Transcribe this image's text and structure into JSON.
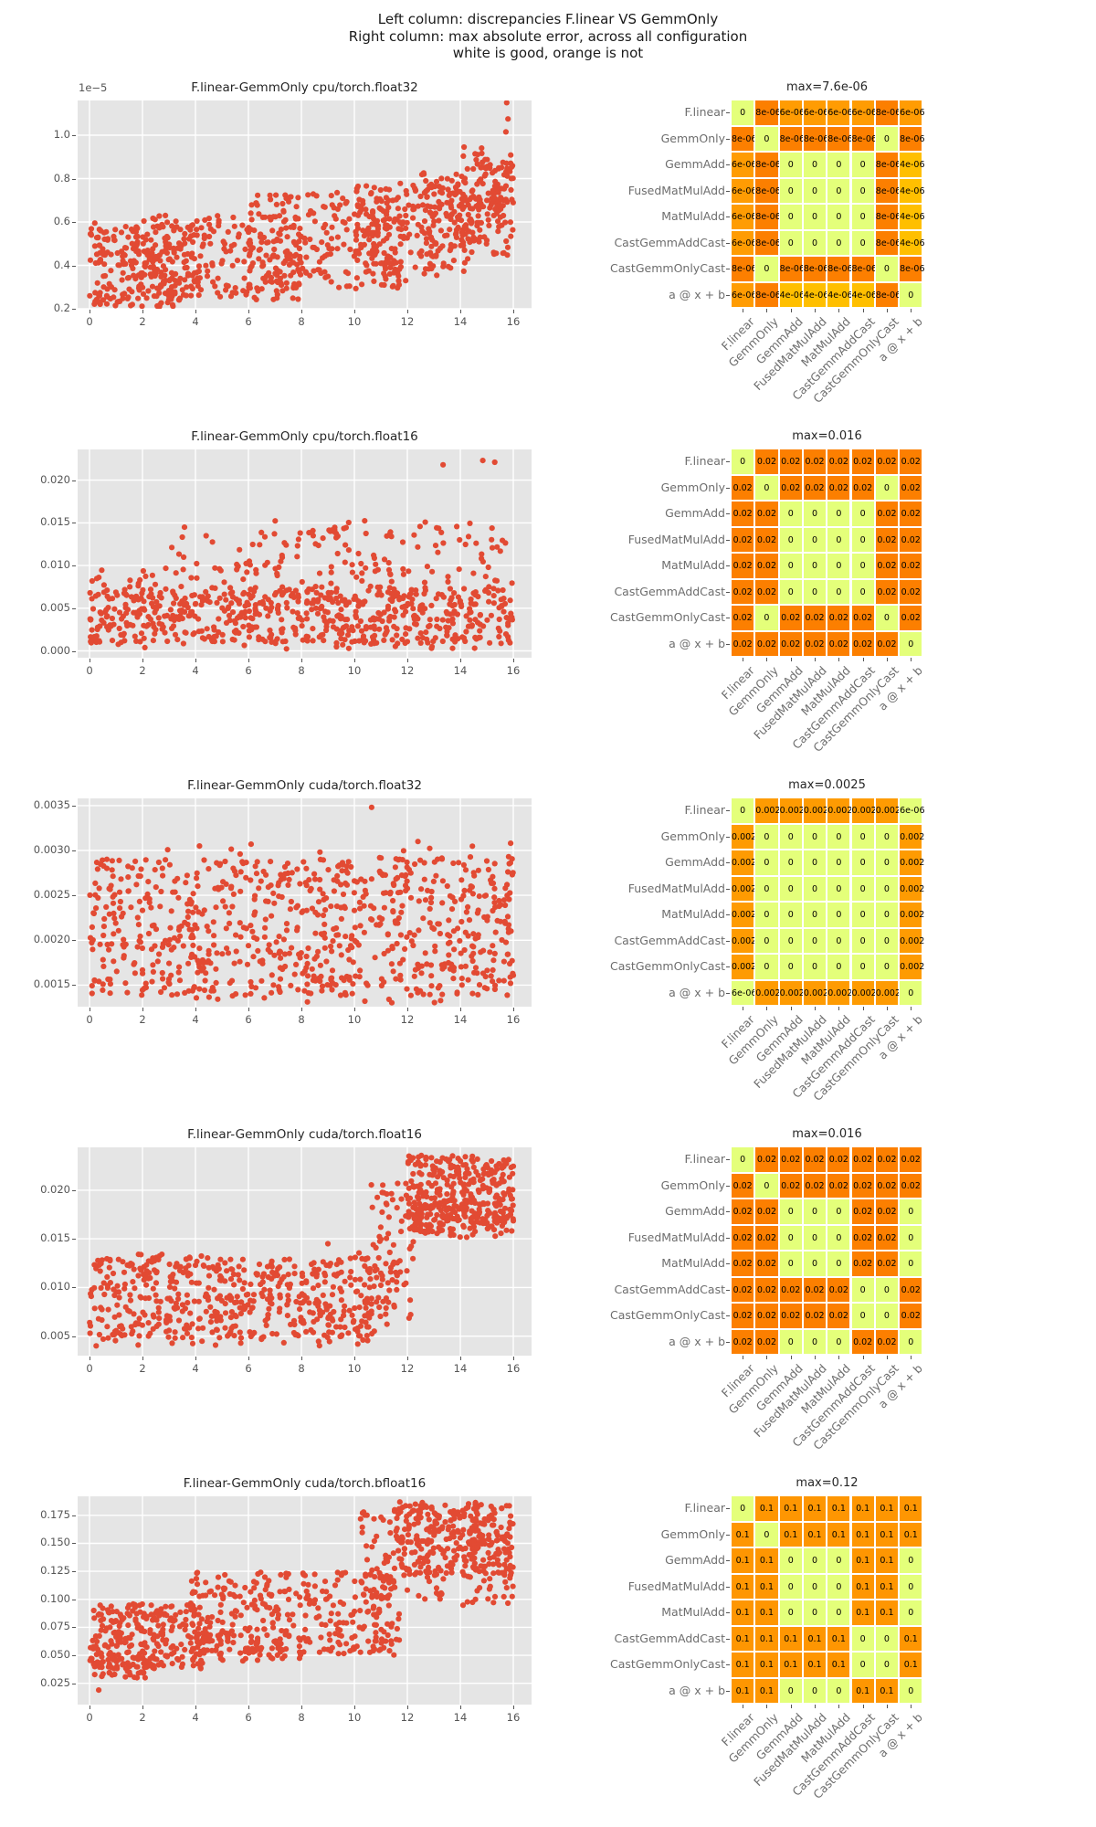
{
  "chart_data": {
    "type": [
      "scatter",
      "heatmap"
    ],
    "suptitle": [
      "Left column: discrepancies F.linear VS GemmOnly",
      "Right column: max absolute error, across all configuration",
      "white is good, orange is not"
    ],
    "operators": [
      "F.linear",
      "GemmOnly",
      "GemmAdd",
      "FusedMatMulAdd",
      "MatMulAdd",
      "CastGemmAddCast",
      "CastGemmOnlyCast",
      "a @ x + b"
    ],
    "style": {
      "dot_color": "#e24a33",
      "plot_bg": "#e5e5e5",
      "grid_color": "#ffffff",
      "tick_color": "#555555",
      "heatmap_label_color": "#6d6d6d",
      "colormap_wistia": [
        "#e4ff7a",
        "#ffe81a",
        "#ffc200",
        "#ffa203",
        "#fc7f00"
      ]
    },
    "scatters": [
      {
        "title": "F.linear-GemmOnly cpu/torch.float32",
        "offset_text": "1e−5",
        "xticks": [
          0,
          2,
          4,
          6,
          8,
          10,
          12,
          14,
          16
        ],
        "yticks": [
          [
            2e-06,
            "0.2"
          ],
          [
            4e-06,
            "0.4"
          ],
          [
            6e-06,
            "0.6"
          ],
          [
            8e-06,
            "0.8"
          ],
          [
            1e-05,
            "1.0"
          ]
        ],
        "ylim": [
          2e-06,
          1.16e-05
        ],
        "seed": 11,
        "bands": [
          [
            0,
            4.2,
            2.1e-06,
            5.9e-06,
            230
          ],
          [
            2,
            8,
            2.4e-06,
            6.3e-06,
            210
          ],
          [
            6,
            12,
            2.9e-06,
            7.3e-06,
            240
          ],
          [
            10,
            14.2,
            3.5e-06,
            7.8e-06,
            160
          ],
          [
            12.5,
            16,
            4.3e-06,
            8.8e-06,
            170
          ],
          [
            14,
            16,
            5.6e-06,
            9.5e-06,
            70
          ]
        ],
        "outliers": [
          [
            15.75,
            1.15e-05
          ],
          [
            15.8,
            1.075e-05
          ],
          [
            15.72,
            1.015e-05
          ],
          [
            13.85,
            8.2e-06
          ],
          [
            9.35,
            7.35e-06
          ],
          [
            0.2,
            5.95e-06
          ]
        ]
      },
      {
        "title": "F.linear-GemmOnly cpu/torch.float16",
        "xticks": [
          0,
          2,
          4,
          6,
          8,
          10,
          12,
          14,
          16
        ],
        "yticks": [
          [
            0.0,
            "0.000"
          ],
          [
            0.005,
            "0.005"
          ],
          [
            0.01,
            "0.010"
          ],
          [
            0.015,
            "0.015"
          ],
          [
            0.02,
            "0.020"
          ]
        ],
        "ylim": [
          -0.0008,
          0.0236
        ],
        "seed": 22,
        "bands": [
          [
            0,
            16,
            0.0008,
            0.0075,
            520
          ],
          [
            0,
            16,
            0.0002,
            0.0105,
            200
          ],
          [
            3,
            16,
            0.009,
            0.0145,
            90
          ],
          [
            6.5,
            16,
            0.0125,
            0.0153,
            14
          ]
        ],
        "outliers": [
          [
            13.35,
            0.0218
          ],
          [
            14.85,
            0.0223
          ],
          [
            15.3,
            0.0221
          ]
        ]
      },
      {
        "title": "F.linear-GemmOnly cuda/torch.float32",
        "xticks": [
          0,
          2,
          4,
          6,
          8,
          10,
          12,
          14,
          16
        ],
        "yticks": [
          [
            0.0015,
            "0.0015"
          ],
          [
            0.002,
            "0.0020"
          ],
          [
            0.0025,
            "0.0025"
          ],
          [
            0.003,
            "0.0030"
          ],
          [
            0.0035,
            "0.0035"
          ]
        ],
        "ylim": [
          0.00126,
          0.00358
        ],
        "seed": 33,
        "bands": [
          [
            0,
            16,
            0.00138,
            0.00292,
            640
          ],
          [
            0,
            16,
            0.0013,
            0.00305,
            170
          ]
        ],
        "outliers": [
          [
            10.65,
            0.00348
          ],
          [
            15.9,
            0.00308
          ],
          [
            12.4,
            0.0031
          ],
          [
            6.1,
            0.00307
          ]
        ]
      },
      {
        "title": "F.linear-GemmOnly cuda/torch.float16",
        "xticks": [
          0,
          2,
          4,
          6,
          8,
          10,
          12,
          14,
          16
        ],
        "yticks": [
          [
            0.005,
            "0.005"
          ],
          [
            0.01,
            "0.010"
          ],
          [
            0.015,
            "0.015"
          ],
          [
            0.02,
            "0.020"
          ]
        ],
        "ylim": [
          0.003,
          0.0244
        ],
        "seed": 44,
        "bands": [
          [
            0,
            10.8,
            0.0048,
            0.0131,
            430
          ],
          [
            0,
            10.8,
            0.004,
            0.0136,
            110
          ],
          [
            10.6,
            12.3,
            0.006,
            0.0208,
            85
          ],
          [
            12,
            16,
            0.0157,
            0.0236,
            330
          ],
          [
            12,
            16,
            0.015,
            0.019,
            60
          ]
        ],
        "outliers": [
          [
            0.25,
            0.004
          ],
          [
            9.0,
            0.0145
          ]
        ]
      },
      {
        "title": "F.linear-GemmOnly cuda/torch.bfloat16",
        "xticks": [
          0,
          2,
          4,
          6,
          8,
          10,
          12,
          14,
          16
        ],
        "yticks": [
          [
            0.025,
            "0.025"
          ],
          [
            0.05,
            "0.050"
          ],
          [
            0.075,
            "0.075"
          ],
          [
            0.1,
            "0.100"
          ],
          [
            0.125,
            "0.125"
          ],
          [
            0.15,
            "0.150"
          ],
          [
            0.175,
            "0.175"
          ]
        ],
        "ylim": [
          0.006,
          0.192
        ],
        "seed": 55,
        "bands": [
          [
            0,
            4.3,
            0.038,
            0.096,
            250
          ],
          [
            0,
            2.5,
            0.03,
            0.052,
            45
          ],
          [
            3.8,
            11.7,
            0.05,
            0.1245,
            330
          ],
          [
            4,
            8,
            0.044,
            0.068,
            45
          ],
          [
            10.2,
            12.1,
            0.098,
            0.182,
            55
          ],
          [
            11.6,
            16,
            0.123,
            0.187,
            300
          ],
          [
            12,
            16,
            0.094,
            0.124,
            45
          ]
        ],
        "outliers": [
          [
            0.35,
            0.019
          ],
          [
            2.1,
            0.03
          ],
          [
            10.35,
            0.178
          ]
        ]
      }
    ],
    "heatmaps": [
      {
        "title": "max=7.6e-06",
        "max": 7.6e-06,
        "cells": [
          [
            "0",
            "8e-06",
            "6e-06",
            "6e-06",
            "6e-06",
            "6e-06",
            "8e-06",
            "6e-06"
          ],
          [
            "8e-06",
            "0",
            "8e-06",
            "8e-06",
            "8e-06",
            "8e-06",
            "0",
            "8e-06"
          ],
          [
            "6e-06",
            "8e-06",
            "0",
            "0",
            "0",
            "0",
            "8e-06",
            "4e-06"
          ],
          [
            "6e-06",
            "8e-06",
            "0",
            "0",
            "0",
            "0",
            "8e-06",
            "4e-06"
          ],
          [
            "6e-06",
            "8e-06",
            "0",
            "0",
            "0",
            "0",
            "8e-06",
            "4e-06"
          ],
          [
            "6e-06",
            "8e-06",
            "0",
            "0",
            "0",
            "0",
            "8e-06",
            "4e-06"
          ],
          [
            "8e-06",
            "0",
            "8e-06",
            "8e-06",
            "8e-06",
            "8e-06",
            "0",
            "8e-06"
          ],
          [
            "6e-06",
            "8e-06",
            "4e-06",
            "4e-06",
            "4e-06",
            "4e-06",
            "8e-06",
            "0"
          ]
        ]
      },
      {
        "title": "max=0.016",
        "max": 0.016,
        "cells": [
          [
            "0",
            "0.02",
            "0.02",
            "0.02",
            "0.02",
            "0.02",
            "0.02",
            "0.02"
          ],
          [
            "0.02",
            "0",
            "0.02",
            "0.02",
            "0.02",
            "0.02",
            "0",
            "0.02"
          ],
          [
            "0.02",
            "0.02",
            "0",
            "0",
            "0",
            "0",
            "0.02",
            "0.02"
          ],
          [
            "0.02",
            "0.02",
            "0",
            "0",
            "0",
            "0",
            "0.02",
            "0.02"
          ],
          [
            "0.02",
            "0.02",
            "0",
            "0",
            "0",
            "0",
            "0.02",
            "0.02"
          ],
          [
            "0.02",
            "0.02",
            "0",
            "0",
            "0",
            "0",
            "0.02",
            "0.02"
          ],
          [
            "0.02",
            "0",
            "0.02",
            "0.02",
            "0.02",
            "0.02",
            "0",
            "0.02"
          ],
          [
            "0.02",
            "0.02",
            "0.02",
            "0.02",
            "0.02",
            "0.02",
            "0.02",
            "0"
          ]
        ]
      },
      {
        "title": "max=0.0025",
        "max": 0.0025,
        "cells": [
          [
            "0",
            "0.002",
            "0.002",
            "0.002",
            "0.002",
            "0.002",
            "0.002",
            "6e-06"
          ],
          [
            "0.002",
            "0",
            "0",
            "0",
            "0",
            "0",
            "0",
            "0.002"
          ],
          [
            "0.002",
            "0",
            "0",
            "0",
            "0",
            "0",
            "0",
            "0.002"
          ],
          [
            "0.002",
            "0",
            "0",
            "0",
            "0",
            "0",
            "0",
            "0.002"
          ],
          [
            "0.002",
            "0",
            "0",
            "0",
            "0",
            "0",
            "0",
            "0.002"
          ],
          [
            "0.002",
            "0",
            "0",
            "0",
            "0",
            "0",
            "0",
            "0.002"
          ],
          [
            "0.002",
            "0",
            "0",
            "0",
            "0",
            "0",
            "0",
            "0.002"
          ],
          [
            "6e-06",
            "0.002",
            "0.002",
            "0.002",
            "0.002",
            "0.002",
            "0.002",
            "0"
          ]
        ]
      },
      {
        "title": "max=0.016",
        "max": 0.016,
        "cells": [
          [
            "0",
            "0.02",
            "0.02",
            "0.02",
            "0.02",
            "0.02",
            "0.02",
            "0.02"
          ],
          [
            "0.02",
            "0",
            "0.02",
            "0.02",
            "0.02",
            "0.02",
            "0.02",
            "0.02"
          ],
          [
            "0.02",
            "0.02",
            "0",
            "0",
            "0",
            "0.02",
            "0.02",
            "0"
          ],
          [
            "0.02",
            "0.02",
            "0",
            "0",
            "0",
            "0.02",
            "0.02",
            "0"
          ],
          [
            "0.02",
            "0.02",
            "0",
            "0",
            "0",
            "0.02",
            "0.02",
            "0"
          ],
          [
            "0.02",
            "0.02",
            "0.02",
            "0.02",
            "0.02",
            "0",
            "0",
            "0.02"
          ],
          [
            "0.02",
            "0.02",
            "0.02",
            "0.02",
            "0.02",
            "0",
            "0",
            "0.02"
          ],
          [
            "0.02",
            "0.02",
            "0",
            "0",
            "0",
            "0.02",
            "0.02",
            "0"
          ]
        ]
      },
      {
        "title": "max=0.12",
        "max": 0.12,
        "cells": [
          [
            "0",
            "0.1",
            "0.1",
            "0.1",
            "0.1",
            "0.1",
            "0.1",
            "0.1"
          ],
          [
            "0.1",
            "0",
            "0.1",
            "0.1",
            "0.1",
            "0.1",
            "0.1",
            "0.1"
          ],
          [
            "0.1",
            "0.1",
            "0",
            "0",
            "0",
            "0.1",
            "0.1",
            "0"
          ],
          [
            "0.1",
            "0.1",
            "0",
            "0",
            "0",
            "0.1",
            "0.1",
            "0"
          ],
          [
            "0.1",
            "0.1",
            "0",
            "0",
            "0",
            "0.1",
            "0.1",
            "0"
          ],
          [
            "0.1",
            "0.1",
            "0.1",
            "0.1",
            "0.1",
            "0",
            "0",
            "0.1"
          ],
          [
            "0.1",
            "0.1",
            "0.1",
            "0.1",
            "0.1",
            "0",
            "0",
            "0.1"
          ],
          [
            "0.1",
            "0.1",
            "0",
            "0",
            "0",
            "0.1",
            "0.1",
            "0"
          ]
        ]
      }
    ]
  }
}
